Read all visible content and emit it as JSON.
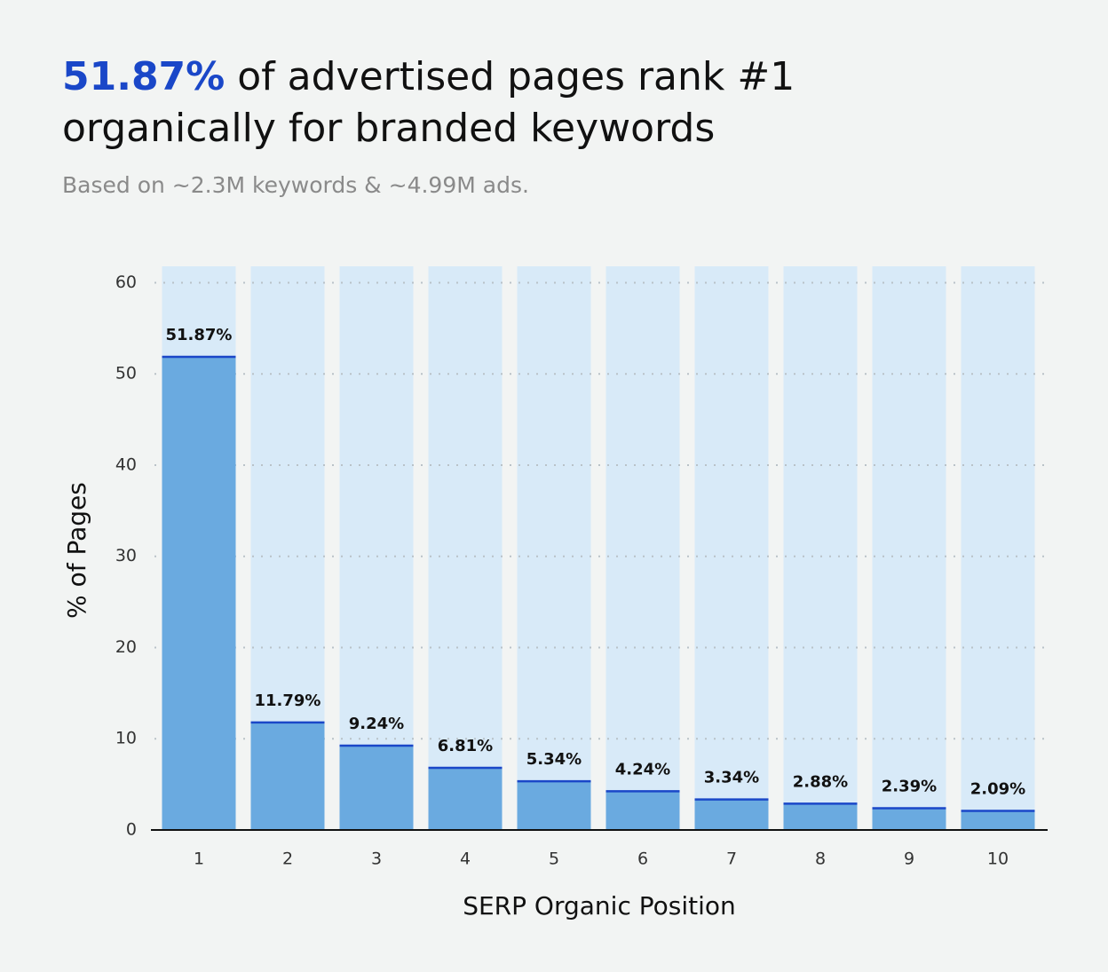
{
  "chart_data": {
    "type": "bar",
    "title_highlight": "51.87%",
    "title": "of advertised pages rank #1 organically for branded keywords",
    "subtitle": "Based on ~2.3M keywords & ~4.99M ads.",
    "x_label": "SERP Organic Position",
    "y_label": "% of Pages",
    "categories": [
      "1",
      "2",
      "3",
      "4",
      "5",
      "6",
      "7",
      "8",
      "9",
      "10"
    ],
    "values": [
      51.87,
      11.79,
      9.24,
      6.81,
      5.34,
      4.24,
      3.34,
      2.88,
      2.39,
      2.09
    ],
    "value_labels": [
      "51.87%",
      "11.79%",
      "9.24%",
      "6.81%",
      "5.34%",
      "4.24%",
      "3.34%",
      "2.88%",
      "2.39%",
      "2.09%"
    ],
    "color": "#6aaae0",
    "ylim": [
      0,
      61.8
    ],
    "yticks": [
      0,
      10,
      20,
      30,
      40,
      50,
      60
    ],
    "grid": true
  }
}
